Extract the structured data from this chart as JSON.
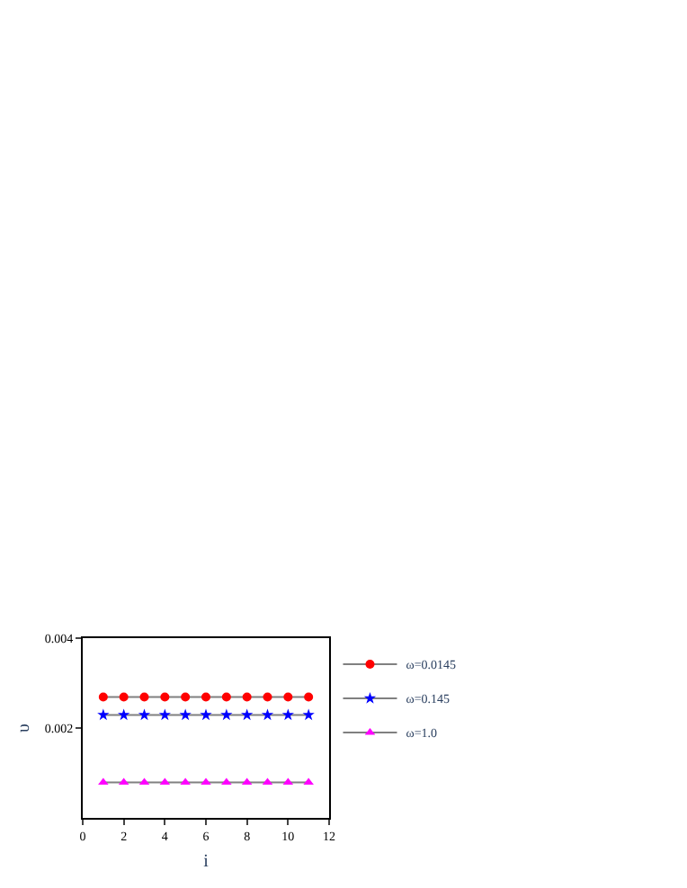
{
  "chart_data": {
    "type": "line",
    "xlabel": "i",
    "ylabel": "υ",
    "x": [
      1,
      2,
      3,
      4,
      5,
      6,
      7,
      8,
      9,
      10,
      11
    ],
    "series": [
      {
        "name": "ω=0.0145",
        "color": "#ff0000",
        "marker": "circle",
        "values": [
          0.00269,
          0.00269,
          0.00269,
          0.00269,
          0.00269,
          0.00269,
          0.00269,
          0.00269,
          0.00269,
          0.00269,
          0.00269
        ]
      },
      {
        "name": "ω=0.145",
        "color": "#0000ff",
        "marker": "star",
        "values": [
          0.00229,
          0.00229,
          0.00229,
          0.00229,
          0.00229,
          0.00229,
          0.00229,
          0.00229,
          0.00229,
          0.00229,
          0.00229
        ]
      },
      {
        "name": "ω=1.0",
        "color": "#ff00ff",
        "marker": "triangle",
        "values": [
          0.00079,
          0.00079,
          0.00079,
          0.00079,
          0.00079,
          0.00079,
          0.00079,
          0.00079,
          0.00079,
          0.00079,
          0.00079
        ]
      }
    ],
    "xlim": [
      0,
      12
    ],
    "xticks": [
      0,
      2,
      4,
      6,
      8,
      10,
      12
    ],
    "ylim": [
      0,
      0.004
    ],
    "yticks": [
      0.002,
      0.004
    ],
    "legend": "top right",
    "line_style": "solid"
  }
}
